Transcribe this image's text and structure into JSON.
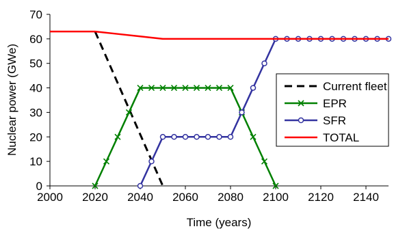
{
  "chart_data": {
    "type": "line",
    "title": "",
    "xlabel": "Time (years)",
    "ylabel": "Nuclear power (GWe)",
    "xlim": [
      2000,
      2150
    ],
    "ylim": [
      0,
      70
    ],
    "xticks": [
      2000,
      2020,
      2040,
      2060,
      2080,
      2100,
      2120,
      2140
    ],
    "yticks": [
      0,
      10,
      20,
      30,
      40,
      50,
      60,
      70
    ],
    "grid": false,
    "legend_position": "right",
    "series": [
      {
        "name": "Current fleet",
        "color": "#000000",
        "style": "dashed",
        "marker": "none",
        "points": [
          [
            2020,
            63
          ],
          [
            2050,
            0
          ]
        ]
      },
      {
        "name": "EPR",
        "color": "#008000",
        "style": "solid",
        "marker": "x",
        "points": [
          [
            2020,
            0
          ],
          [
            2025,
            10
          ],
          [
            2030,
            20
          ],
          [
            2035,
            30
          ],
          [
            2040,
            40
          ],
          [
            2045,
            40
          ],
          [
            2050,
            40
          ],
          [
            2055,
            40
          ],
          [
            2060,
            40
          ],
          [
            2065,
            40
          ],
          [
            2070,
            40
          ],
          [
            2075,
            40
          ],
          [
            2080,
            40
          ],
          [
            2085,
            30
          ],
          [
            2090,
            20
          ],
          [
            2095,
            10
          ],
          [
            2100,
            0
          ]
        ]
      },
      {
        "name": "SFR",
        "color": "#3333a0",
        "style": "solid",
        "marker": "circle",
        "points": [
          [
            2040,
            0
          ],
          [
            2045,
            10
          ],
          [
            2050,
            20
          ],
          [
            2055,
            20
          ],
          [
            2060,
            20
          ],
          [
            2065,
            20
          ],
          [
            2070,
            20
          ],
          [
            2075,
            20
          ],
          [
            2080,
            20
          ],
          [
            2085,
            30
          ],
          [
            2090,
            40
          ],
          [
            2095,
            50
          ],
          [
            2100,
            60
          ],
          [
            2105,
            60
          ],
          [
            2110,
            60
          ],
          [
            2115,
            60
          ],
          [
            2120,
            60
          ],
          [
            2125,
            60
          ],
          [
            2130,
            60
          ],
          [
            2135,
            60
          ],
          [
            2140,
            60
          ],
          [
            2145,
            60
          ],
          [
            2150,
            60
          ]
        ]
      },
      {
        "name": "TOTAL",
        "color": "#ff0000",
        "style": "solid",
        "marker": "none",
        "points": [
          [
            2000,
            63
          ],
          [
            2020,
            63
          ],
          [
            2030,
            62
          ],
          [
            2040,
            61
          ],
          [
            2050,
            60
          ],
          [
            2100,
            60
          ],
          [
            2150,
            60
          ]
        ]
      }
    ]
  }
}
